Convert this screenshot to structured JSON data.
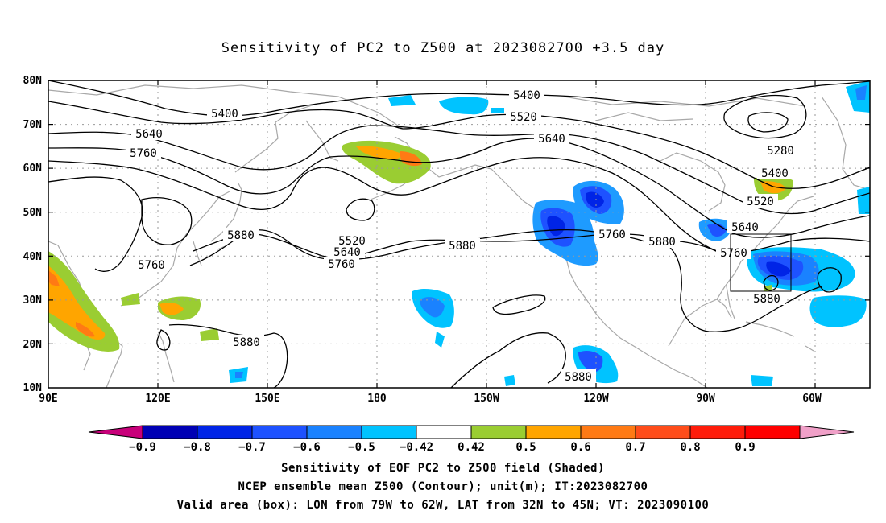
{
  "title": "Sensitivity of PC2 to Z500 at 2023082700 +3.5 day",
  "lat_labels": [
    "80N",
    "70N",
    "60N",
    "50N",
    "40N",
    "30N",
    "20N",
    "10N"
  ],
  "lon_labels": [
    "90E",
    "120E",
    "150E",
    "180",
    "150W",
    "120W",
    "90W",
    "60W"
  ],
  "colorbar": {
    "colors": [
      "#c8007a",
      "#0000b4",
      "#0024e6",
      "#1e52ff",
      "#1a82ff",
      "#00c3ff",
      "#ffffff",
      "#9acd32",
      "#ffa500",
      "#ff7a14",
      "#ff4d1a",
      "#ff1c0a",
      "#ff0000",
      "#f0a0c8"
    ],
    "labels": [
      "-0.9",
      "-0.8",
      "-0.7",
      "-0.6",
      "-0.5",
      "-0.42",
      "0.42",
      "0.5",
      "0.6",
      "0.7",
      "0.8",
      "0.9"
    ]
  },
  "contour_labels": [
    {
      "text": "5400"
    },
    {
      "text": "5400"
    },
    {
      "text": "5520"
    },
    {
      "text": "5640"
    },
    {
      "text": "5760"
    },
    {
      "text": "5280"
    },
    {
      "text": "5400"
    },
    {
      "text": "5520"
    },
    {
      "text": "5640"
    },
    {
      "text": "5760"
    },
    {
      "text": "5880"
    },
    {
      "text": "5880"
    },
    {
      "text": "5880"
    },
    {
      "text": "5880"
    },
    {
      "text": "5880"
    },
    {
      "text": "5520"
    },
    {
      "text": "5640"
    },
    {
      "text": "5760"
    },
    {
      "text": "5760"
    },
    {
      "text": "5640"
    },
    {
      "text": "5760"
    },
    {
      "text": "5880"
    }
  ],
  "captions": [
    "Sensitivity of EOF PC2 to Z500 field (Shaded)",
    "NCEP ensemble mean Z500 (Contour); unit(m); IT:2023082700",
    "Valid area (box): LON from 79W to 62W, LAT from 32N to 45N; VT: 2023090100"
  ],
  "valid_box": {
    "lon_min": -79,
    "lon_max": -62,
    "lat_min": 32,
    "lat_max": 45
  }
}
